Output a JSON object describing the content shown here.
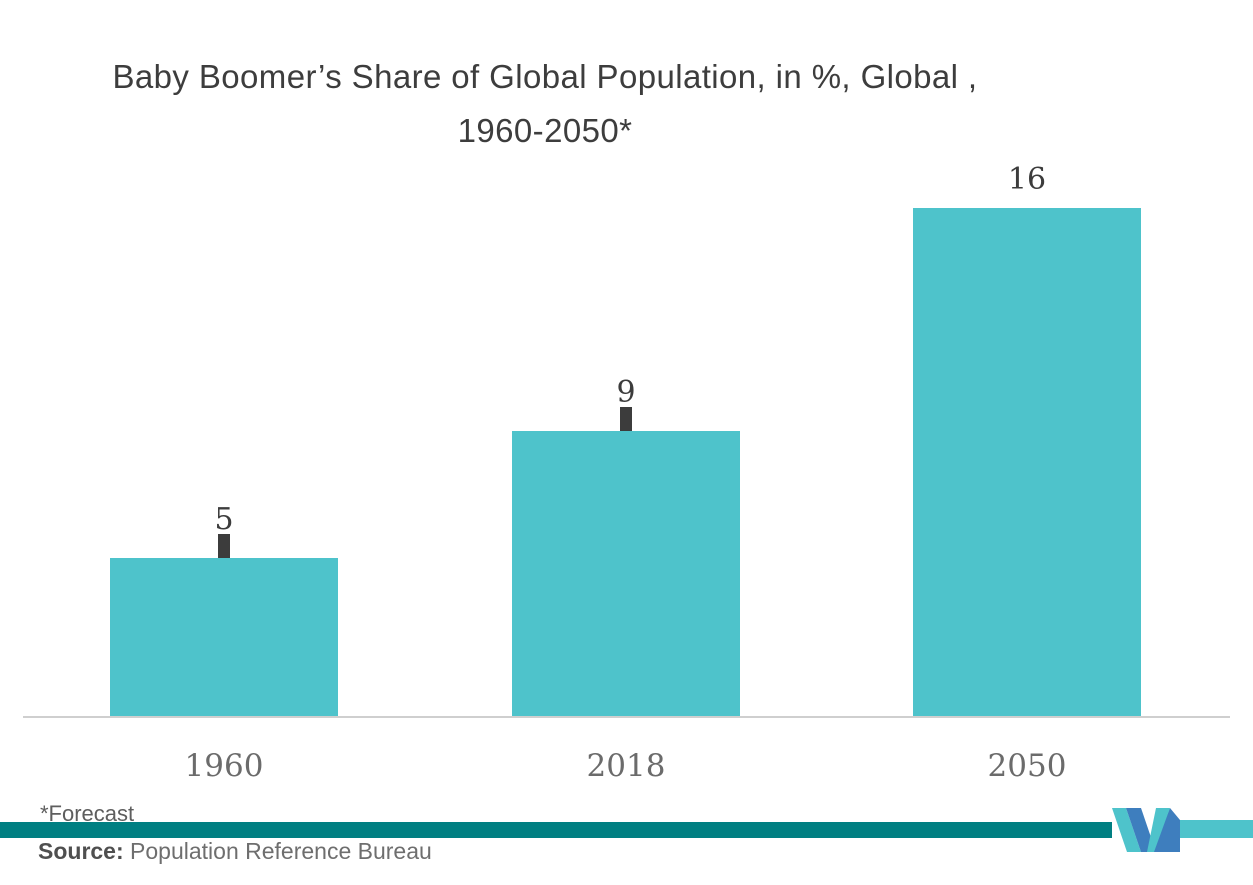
{
  "title": {
    "line1": "Baby Boomer’s Share of Global Population, in %, Global ,",
    "line2": "1960-2050*"
  },
  "chart_data": {
    "type": "bar",
    "title": "Baby Boomer’s Share of Global Population, in %, Global , 1960-2050*",
    "categories": [
      "1960",
      "2018",
      "2050"
    ],
    "values": [
      5,
      9,
      16
    ],
    "labels": [
      "5",
      "9",
      "16"
    ],
    "label_descenders": [
      true,
      true,
      false
    ],
    "unit": "%",
    "xlabel": "",
    "ylabel": "",
    "ylim": [
      0,
      17.5
    ],
    "grid": false,
    "legend": false
  },
  "footer": {
    "forecast_note": "*Forecast",
    "source_label": "Source:",
    "source_text": " Population Reference Bureau"
  },
  "colors": {
    "bar": "#4EC3CB",
    "band_dark": "#007F82",
    "band_light": "#4EC3CB",
    "logo_blue": "#3E7EBE",
    "logo_teal": "#4EC3CB",
    "title_text": "#3D3D3D",
    "value_text": "#3C3C3C",
    "tick_text": "#6B6B6B",
    "axis_line": "#CFCFCF"
  },
  "icons": {
    "brand_logo": "mordor-intelligence-m-logo"
  }
}
